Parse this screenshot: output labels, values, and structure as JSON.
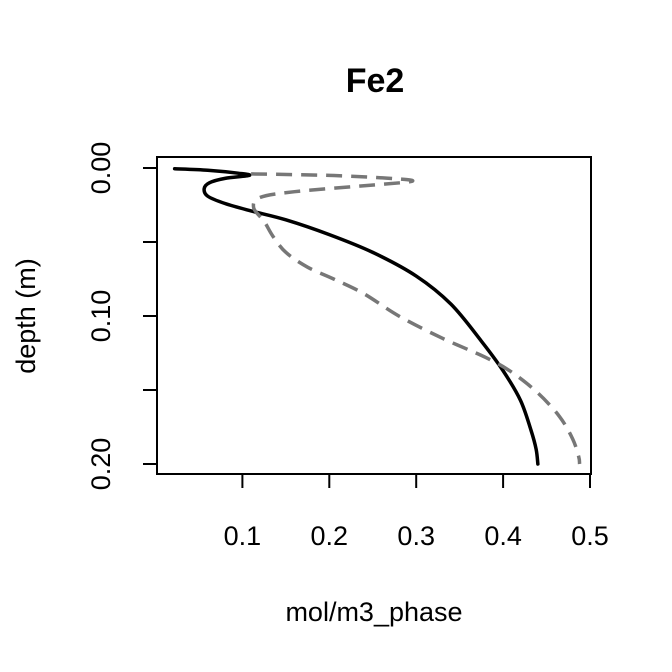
{
  "chart_data": {
    "type": "line",
    "title": "Fe2",
    "xlabel": "mol/m3_phase",
    "ylabel": "depth (m)",
    "xlim": [
      0.0,
      0.5
    ],
    "ylim": [
      0.2,
      0.0
    ],
    "y_reversed": true,
    "grid": false,
    "legend": "none",
    "x_ticks": [
      0.1,
      0.2,
      0.3,
      0.4,
      0.5
    ],
    "x_tick_labels": [
      "0.1",
      "0.2",
      "0.3",
      "0.4",
      "0.5"
    ],
    "y_ticks": [
      0.0,
      0.05,
      0.1,
      0.15,
      0.2
    ],
    "y_tick_labels": [
      "0.00",
      "",
      "0.10",
      "",
      "0.20"
    ],
    "series": [
      {
        "style": "solid",
        "color": "#000000",
        "points": [
          [
            0.022,
            0.0005
          ],
          [
            0.06,
            0.0015
          ],
          [
            0.095,
            0.0035
          ],
          [
            0.108,
            0.005
          ],
          [
            0.08,
            0.007
          ],
          [
            0.062,
            0.01
          ],
          [
            0.056,
            0.014
          ],
          [
            0.06,
            0.019
          ],
          [
            0.08,
            0.024
          ],
          [
            0.11,
            0.029
          ],
          [
            0.15,
            0.035
          ],
          [
            0.2,
            0.045
          ],
          [
            0.25,
            0.057
          ],
          [
            0.3,
            0.073
          ],
          [
            0.34,
            0.092
          ],
          [
            0.375,
            0.117
          ],
          [
            0.4,
            0.137
          ],
          [
            0.42,
            0.157
          ],
          [
            0.432,
            0.177
          ],
          [
            0.438,
            0.19
          ],
          [
            0.44,
            0.2
          ]
        ]
      },
      {
        "style": "dashed",
        "color": "#777777",
        "points": [
          [
            0.11,
            0.004
          ],
          [
            0.2,
            0.005
          ],
          [
            0.27,
            0.007
          ],
          [
            0.295,
            0.009
          ],
          [
            0.24,
            0.012
          ],
          [
            0.16,
            0.016
          ],
          [
            0.12,
            0.02
          ],
          [
            0.113,
            0.027
          ],
          [
            0.125,
            0.036
          ],
          [
            0.135,
            0.046
          ],
          [
            0.15,
            0.057
          ],
          [
            0.175,
            0.067
          ],
          [
            0.205,
            0.075
          ],
          [
            0.24,
            0.085
          ],
          [
            0.28,
            0.1
          ],
          [
            0.33,
            0.115
          ],
          [
            0.38,
            0.128
          ],
          [
            0.41,
            0.138
          ],
          [
            0.44,
            0.152
          ],
          [
            0.465,
            0.168
          ],
          [
            0.48,
            0.183
          ],
          [
            0.487,
            0.195
          ],
          [
            0.488,
            0.2
          ]
        ]
      }
    ]
  }
}
